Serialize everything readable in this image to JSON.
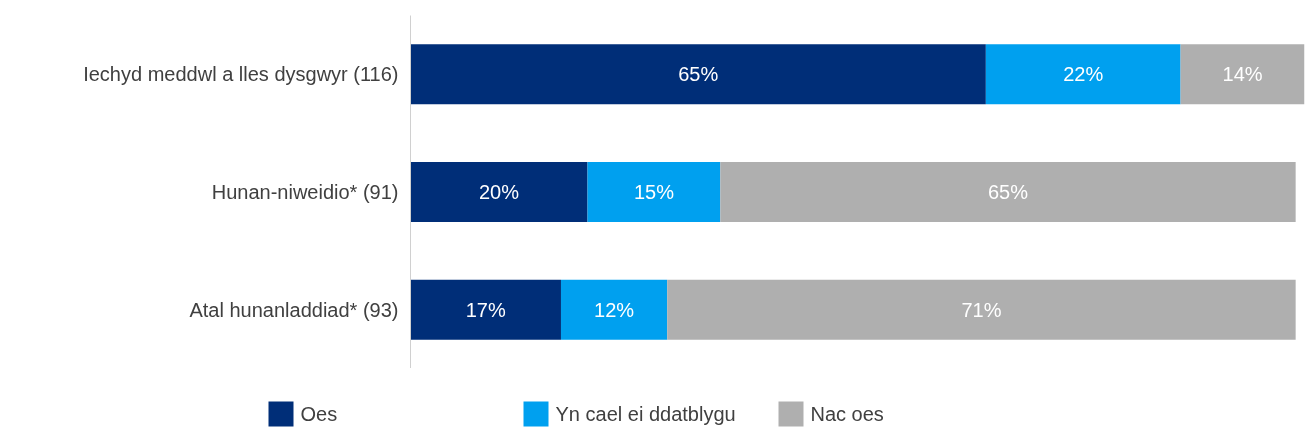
{
  "chart_data": {
    "type": "bar",
    "orientation": "horizontal",
    "stacked": true,
    "categories": [
      "Iechyd meddwl a lles dysgwyr (116)",
      "Hunan-niweidio* (91)",
      "Atal hunanladdiad* (93)"
    ],
    "series": [
      {
        "name": "Oes",
        "color": "#002e78",
        "values": [
          65,
          20,
          17
        ],
        "value_labels": [
          "65%",
          "20%",
          "17%"
        ]
      },
      {
        "name": "Yn cael ei ddatblygu",
        "color": "#00a0ef",
        "values": [
          22,
          15,
          12
        ],
        "value_labels": [
          "22%",
          "15%",
          "12%"
        ]
      },
      {
        "name": "Nac oes",
        "color": "#afafaf",
        "values": [
          14,
          65,
          71
        ],
        "value_labels": [
          "14%",
          "65%",
          "71%"
        ]
      }
    ],
    "xlim": [
      0,
      101
    ],
    "tick_labels": "y",
    "legend": "bottom"
  }
}
